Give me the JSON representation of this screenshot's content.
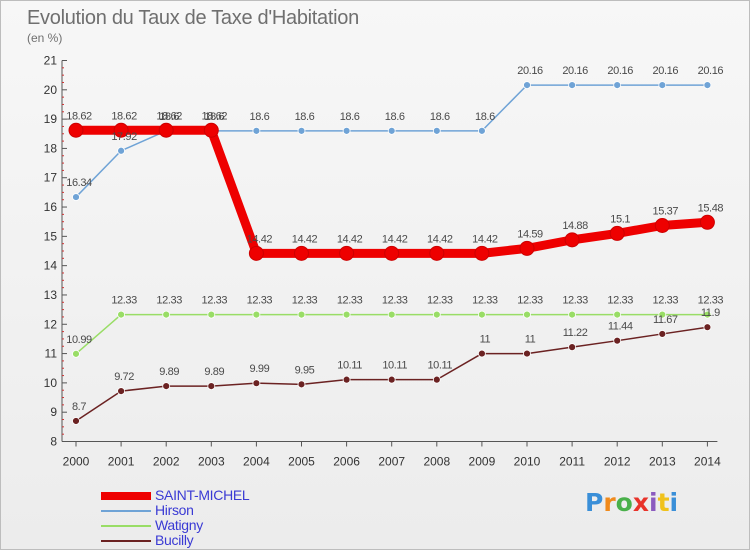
{
  "title": "Evolution du Taux de Taxe d'Habitation",
  "subtitle": "(en %)",
  "logo": "Proxiti",
  "chart_data": {
    "type": "line",
    "title": "Evolution du Taux de Taxe d'Habitation",
    "ylabel": "(en %)",
    "xlabel": "",
    "x": [
      "2000",
      "2001",
      "2002",
      "2003",
      "2004",
      "2005",
      "2006",
      "2007",
      "2008",
      "2009",
      "2010",
      "2011",
      "2012",
      "2013",
      "2014"
    ],
    "ylim": [
      8,
      21
    ],
    "yticks": [
      8,
      9,
      10,
      11,
      12,
      13,
      14,
      15,
      16,
      17,
      18,
      19,
      20,
      21
    ],
    "grid": false,
    "legend_position": "bottom-left",
    "series": [
      {
        "name": "SAINT-MICHEL",
        "color": "#ee0000",
        "values": [
          18.62,
          18.62,
          18.62,
          18.62,
          14.42,
          14.42,
          14.42,
          14.42,
          14.42,
          14.42,
          14.59,
          14.88,
          15.1,
          15.37,
          15.48
        ],
        "labels": [
          "18.62",
          "18.62",
          "18.62",
          "18.62",
          "14.42",
          "14.42",
          "14.42",
          "14.42",
          "14.42",
          "14.42",
          "14.59",
          "14.88",
          "15.1",
          "15.37",
          "15.48"
        ]
      },
      {
        "name": "Hirson",
        "color": "#6fa3d6",
        "values": [
          16.34,
          17.92,
          18.6,
          18.6,
          18.6,
          18.6,
          18.6,
          18.6,
          18.6,
          18.6,
          20.16,
          20.16,
          20.16,
          20.16,
          20.16
        ],
        "labels": [
          "16.34",
          "17.92",
          "18.6",
          "18.6",
          "18.6",
          "18.6",
          "18.6",
          "18.6",
          "18.6",
          "18.6",
          "20.16",
          "20.16",
          "20.16",
          "20.16",
          "20.16"
        ]
      },
      {
        "name": "Watigny",
        "color": "#99dd66",
        "values": [
          10.99,
          12.33,
          12.33,
          12.33,
          12.33,
          12.33,
          12.33,
          12.33,
          12.33,
          12.33,
          12.33,
          12.33,
          12.33,
          12.33,
          12.33
        ],
        "labels": [
          "10.99",
          "12.33",
          "12.33",
          "12.33",
          "12.33",
          "12.33",
          "12.33",
          "12.33",
          "12.33",
          "12.33",
          "12.33",
          "12.33",
          "12.33",
          "12.33",
          "12.33"
        ]
      },
      {
        "name": "Bucilly",
        "color": "#6b2222",
        "values": [
          8.7,
          9.72,
          9.89,
          9.89,
          9.99,
          9.95,
          10.11,
          10.11,
          10.11,
          11,
          11,
          11.22,
          11.44,
          11.67,
          11.9
        ],
        "labels": [
          "8.7",
          "9.72",
          "9.89",
          "9.89",
          "9.99",
          "9.95",
          "10.11",
          "10.11",
          "10.11",
          "11",
          "11",
          "11.22",
          "11.44",
          "11.67",
          "11.9"
        ]
      }
    ]
  }
}
